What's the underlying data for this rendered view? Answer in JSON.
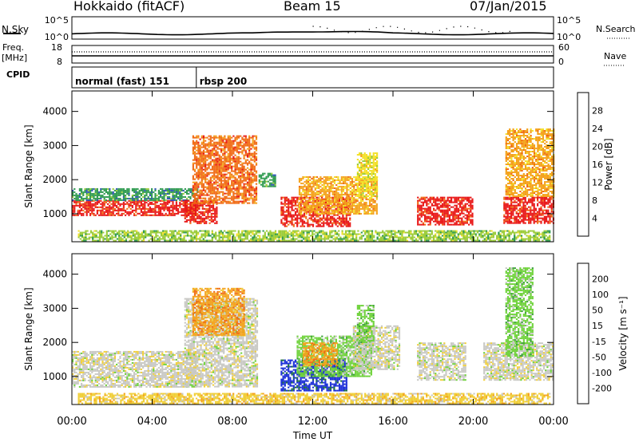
{
  "header": {
    "title": "Hokkaido (fitACF)",
    "beam": "Beam 15",
    "date": "07/Jan/2015"
  },
  "side_labels": {
    "nsky": "N.Sky",
    "freq": "Freq.",
    "freq_unit": "[MHz]",
    "cpid": "CPID",
    "nsearch": "N.Search",
    "nave": "Nave"
  },
  "noise_panel": {
    "left_ticks": [
      "10^5",
      "10^0"
    ],
    "right_ticks": [
      "10^5",
      "10^0"
    ]
  },
  "freq_panel": {
    "left_ticks": [
      "18",
      "8"
    ],
    "right_ticks": [
      "60",
      "0"
    ]
  },
  "cpid_panel": {
    "modes": [
      {
        "label": "normal (fast) 151",
        "start_hour": 0
      },
      {
        "label": "rbsp 200",
        "start_hour": 6.2
      }
    ]
  },
  "chart_data": [
    {
      "type": "heatmap",
      "name": "power",
      "xlabel": "Time UT",
      "ylabel": "Slant Range [km]",
      "x_tick_labels": [
        "00:00",
        "04:00",
        "08:00",
        "12:00",
        "16:00",
        "20:00",
        "00:00"
      ],
      "xlim_hours": [
        0,
        24
      ],
      "ylim": [
        180,
        4600
      ],
      "y_ticks": [
        1000,
        2000,
        3000,
        4000
      ],
      "colorbar": {
        "label": "Power [dB]",
        "ticks": [
          "4",
          "8",
          "12",
          "16",
          "20",
          "24",
          "28"
        ],
        "colors": [
          "#1a1aff",
          "#2d52b8",
          "#2e9a4f",
          "#9ccc3a",
          "#f3e12b",
          "#f4a21c",
          "#f06a14",
          "#e81414"
        ]
      },
      "regions": [
        {
          "t": [
            0,
            6.3
          ],
          "r": [
            950,
            1400
          ],
          "level": 7
        },
        {
          "t": [
            0,
            6.3
          ],
          "r": [
            1400,
            1750
          ],
          "level": 2
        },
        {
          "t": [
            5.6,
            7.2
          ],
          "r": [
            700,
            1400
          ],
          "level": 7
        },
        {
          "t": [
            6.0,
            9.2
          ],
          "r": [
            1300,
            3300
          ],
          "level": 6
        },
        {
          "t": [
            9.3,
            10.1
          ],
          "r": [
            1800,
            2200
          ],
          "level": 2
        },
        {
          "t": [
            10.4,
            13.9
          ],
          "r": [
            650,
            1500
          ],
          "level": 7
        },
        {
          "t": [
            11.3,
            15.2
          ],
          "r": [
            1000,
            2100
          ],
          "level": 5
        },
        {
          "t": [
            14.2,
            15.2
          ],
          "r": [
            1500,
            2800
          ],
          "level": 4
        },
        {
          "t": [
            17.2,
            20.0
          ],
          "r": [
            700,
            1500
          ],
          "level": 7
        },
        {
          "t": [
            21.5,
            24.0
          ],
          "r": [
            750,
            1500
          ],
          "level": 7
        },
        {
          "t": [
            21.6,
            24.0
          ],
          "r": [
            1500,
            3500
          ],
          "level": 5
        },
        {
          "t": [
            0.3,
            23.8
          ],
          "r": [
            200,
            520
          ],
          "level": 3
        }
      ]
    },
    {
      "type": "heatmap",
      "name": "velocity",
      "xlabel": "Time UT",
      "ylabel": "Slant Range [km]",
      "x_tick_labels": [
        "00:00",
        "04:00",
        "08:00",
        "12:00",
        "16:00",
        "20:00",
        "00:00"
      ],
      "xlim_hours": [
        0,
        24
      ],
      "ylim": [
        180,
        4600
      ],
      "y_ticks": [
        1000,
        2000,
        3000,
        4000
      ],
      "colorbar": {
        "label": "Velocity [m s⁻¹]",
        "ticks": [
          "-200",
          "-100",
          "-50",
          "-15",
          "15",
          "50",
          "100",
          "200"
        ],
        "colors": [
          "#e81414",
          "#f06a14",
          "#f4a21c",
          "#f0cf3a",
          "#c8c8c4",
          "#6ed23a",
          "#3aa03a",
          "#1b6e3a",
          "#1a2ed8"
        ]
      },
      "regions": [
        {
          "t": [
            0,
            6.3
          ],
          "r": [
            700,
            1750
          ],
          "level": 4
        },
        {
          "t": [
            5.6,
            9.2
          ],
          "r": [
            700,
            3300
          ],
          "level": 4
        },
        {
          "t": [
            6.0,
            8.6
          ],
          "r": [
            2200,
            3600
          ],
          "level": 2
        },
        {
          "t": [
            10.4,
            13.7
          ],
          "r": [
            600,
            1500
          ],
          "level": 8
        },
        {
          "t": [
            11.2,
            14.9
          ],
          "r": [
            1000,
            2200
          ],
          "level": 5
        },
        {
          "t": [
            11.5,
            13.2
          ],
          "r": [
            1300,
            2000
          ],
          "level": 2
        },
        {
          "t": [
            14.0,
            16.3
          ],
          "r": [
            1200,
            2500
          ],
          "level": 4
        },
        {
          "t": [
            14.2,
            15.0
          ],
          "r": [
            2000,
            3100
          ],
          "level": 5
        },
        {
          "t": [
            17.2,
            19.6
          ],
          "r": [
            900,
            2000
          ],
          "level": 4
        },
        {
          "t": [
            20.5,
            24.0
          ],
          "r": [
            900,
            2000
          ],
          "level": 4
        },
        {
          "t": [
            21.6,
            23.0
          ],
          "r": [
            1600,
            4200
          ],
          "level": 5
        },
        {
          "t": [
            0.3,
            23.8
          ],
          "r": [
            200,
            520
          ],
          "level": 3
        }
      ]
    }
  ]
}
